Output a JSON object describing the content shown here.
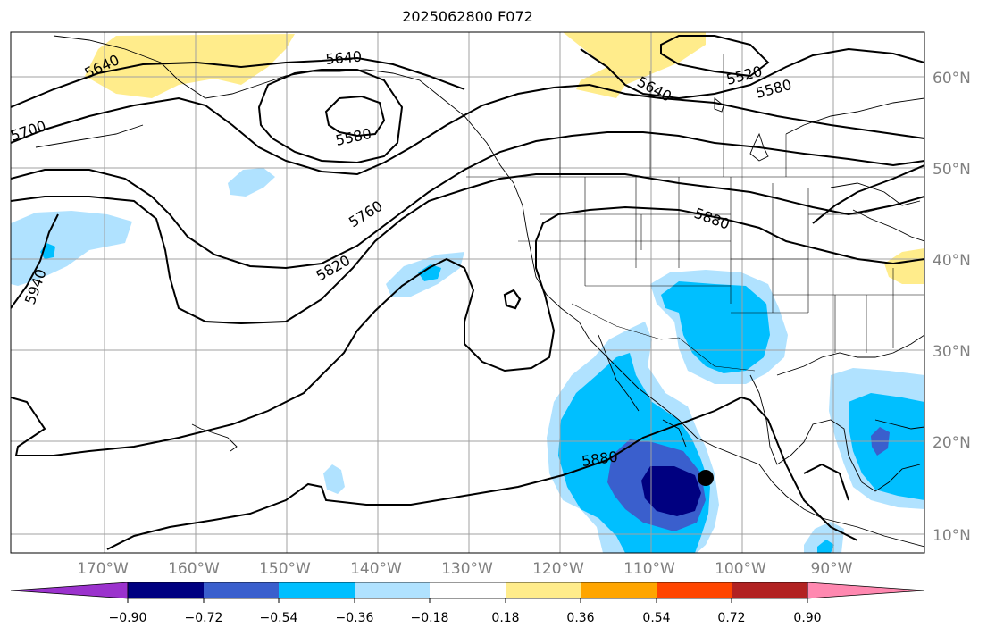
{
  "title": "2025062800 F072",
  "map": {
    "lat_labels": [
      "60°N",
      "50°N",
      "40°N",
      "30°N",
      "20°N",
      "10°N"
    ],
    "lon_labels": [
      "170°W",
      "160°W",
      "150°W",
      "140°W",
      "130°W",
      "120°W",
      "110°W",
      "100°W",
      "90°W"
    ],
    "contour_labels": [
      "5640",
      "5700",
      "5640",
      "5580",
      "5760",
      "5820",
      "5940",
      "5640",
      "5520",
      "5580",
      "5880",
      "5880"
    ],
    "colorbar_ticks": [
      "−0.90",
      "−0.72",
      "−0.54",
      "−0.36",
      "−0.18",
      "0.18",
      "0.36",
      "0.54",
      "0.72",
      "0.90"
    ],
    "colorbar_colors": [
      "#9b32cd",
      "#000080",
      "#3a5fcd",
      "#00bfff",
      "#b0e2ff",
      "#ffffff",
      "#ffec8b",
      "#ffa500",
      "#ff4500",
      "#b22222",
      "#ff88b0"
    ],
    "colors": {
      "light_blue": "#b0e2ff",
      "deep_sky_blue": "#00bfff",
      "royal_blue": "#3a5fcd",
      "navy": "#000080",
      "light_yellow": "#ffec8b",
      "contour": "#000000",
      "grid": "#a0a0a0",
      "tick_label": "#808080"
    }
  }
}
